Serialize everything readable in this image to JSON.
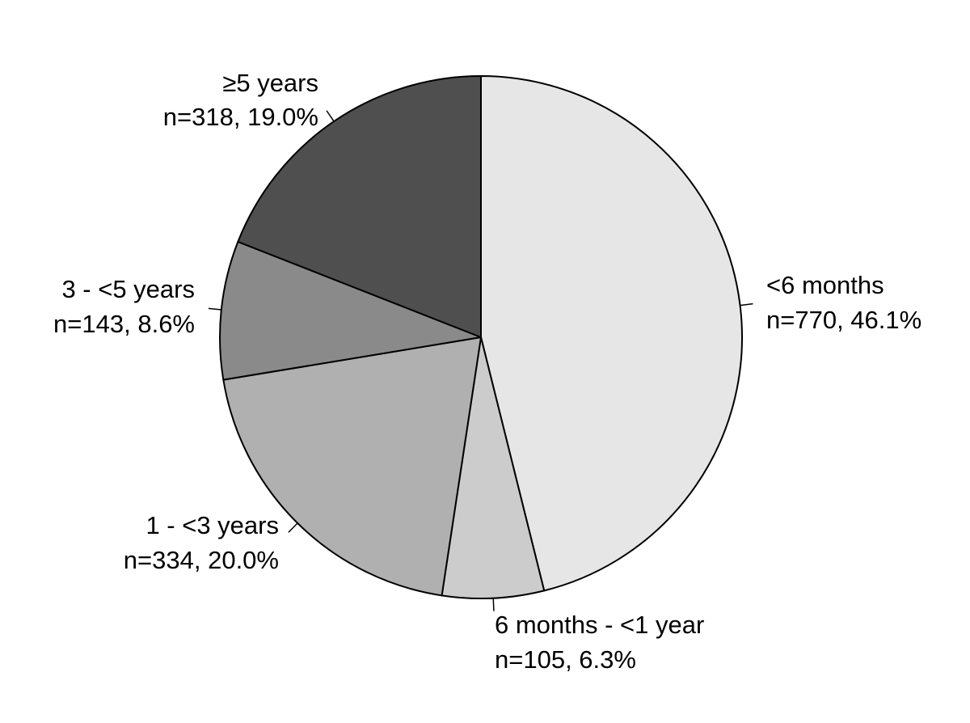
{
  "chart_data": {
    "type": "pie",
    "title": "",
    "start_angle_deg": 0,
    "direction": "clockwise",
    "slices": [
      {
        "category": "<6 months",
        "count": 770,
        "count_label": "n=770, 46.1%",
        "percent": 46.1,
        "color": "#e6e6e6"
      },
      {
        "category": "6 months - <1 year",
        "count": 105,
        "count_label": "n=105, 6.3%",
        "percent": 6.3,
        "color": "#cccccc"
      },
      {
        "category": "1 - <3 years",
        "count": 334,
        "count_label": "n=334, 20.0%",
        "percent": 20.0,
        "color": "#b0b0b0"
      },
      {
        "category": "3 - <5 years",
        "count": 143,
        "count_label": "n=143, 8.6%",
        "percent": 8.6,
        "color": "#8a8a8a"
      },
      {
        "category": "≥5 years",
        "count": 318,
        "count_label": "n=318, 19.0%",
        "percent": 19.0,
        "color": "#4f4f4f"
      }
    ],
    "stroke_color": "#000000",
    "legend": "none"
  }
}
